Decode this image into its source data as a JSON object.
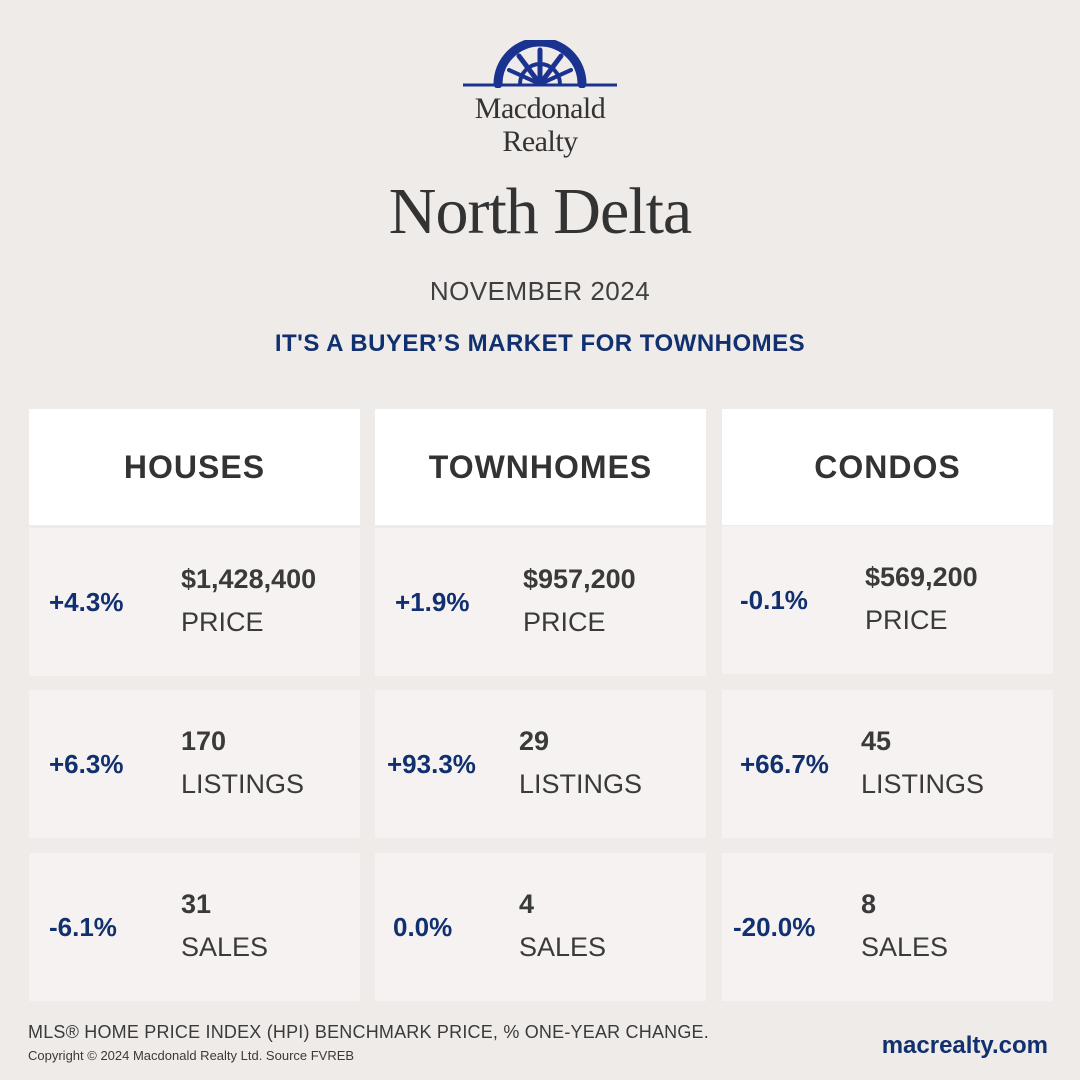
{
  "brand": {
    "line1": "Macdonald",
    "line2": "Realty",
    "logo_icon": "sunburst-arch-logo-icon",
    "color": "#1a3390"
  },
  "area_title": "North Delta",
  "month": "NOVEMBER 2024",
  "headline": "IT'S A BUYER’S MARKET FOR TOWNHOMES",
  "accent_color": "#11306f",
  "columns": [
    {
      "header": "HOUSES",
      "rows": [
        {
          "pct": "+4.3%",
          "value": "$1,428,400",
          "label": "PRICE"
        },
        {
          "pct": "+6.3%",
          "value": "170",
          "label": "LISTINGS"
        },
        {
          "pct": "-6.1%",
          "value": "31",
          "label": "SALES"
        }
      ]
    },
    {
      "header": "TOWNHOMES",
      "rows": [
        {
          "pct": "+1.9%",
          "value": "$957,200",
          "label": "PRICE"
        },
        {
          "pct": "+93.3%",
          "value": "29",
          "label": "LISTINGS"
        },
        {
          "pct": "0.0%",
          "value": "4",
          "label": "SALES"
        }
      ]
    },
    {
      "header": "CONDOS",
      "rows": [
        {
          "pct": "-0.1%",
          "value": "$569,200",
          "label": "PRICE"
        },
        {
          "pct": "+66.7%",
          "value": "45",
          "label": "LISTINGS"
        },
        {
          "pct": "-20.0%",
          "value": "8",
          "label": "SALES"
        }
      ]
    }
  ],
  "footnote": "MLS® HOME PRICE INDEX (HPI) BENCHMARK PRICE, % ONE-YEAR CHANGE.",
  "copyright": "Copyright © 2024 Macdonald Realty Ltd. Source FVREB",
  "website": "macrealty.com"
}
